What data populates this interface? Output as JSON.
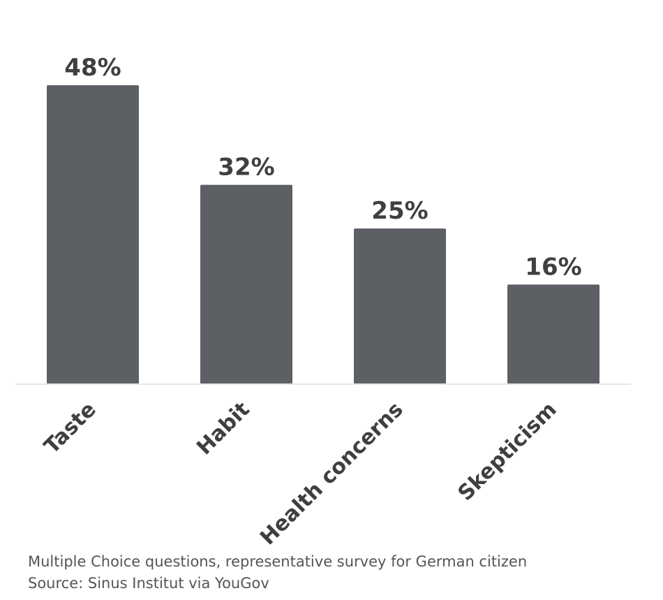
{
  "chart_data": {
    "type": "bar",
    "categories": [
      "Taste",
      "Habit",
      "Health concerns",
      "Skepticism"
    ],
    "values": [
      48,
      32,
      25,
      16
    ],
    "value_labels": [
      "48%",
      "32%",
      "25%",
      "16%"
    ],
    "unit": "%",
    "ylim": [
      0,
      48
    ],
    "grid": false,
    "bar_color": "#5c6064",
    "baseline_color": "#e6e6e6"
  },
  "footnotes": {
    "line1": "Multiple Choice questions, representative survey for German citizen",
    "line2": "Source: Sinus Institut via YouGov"
  }
}
